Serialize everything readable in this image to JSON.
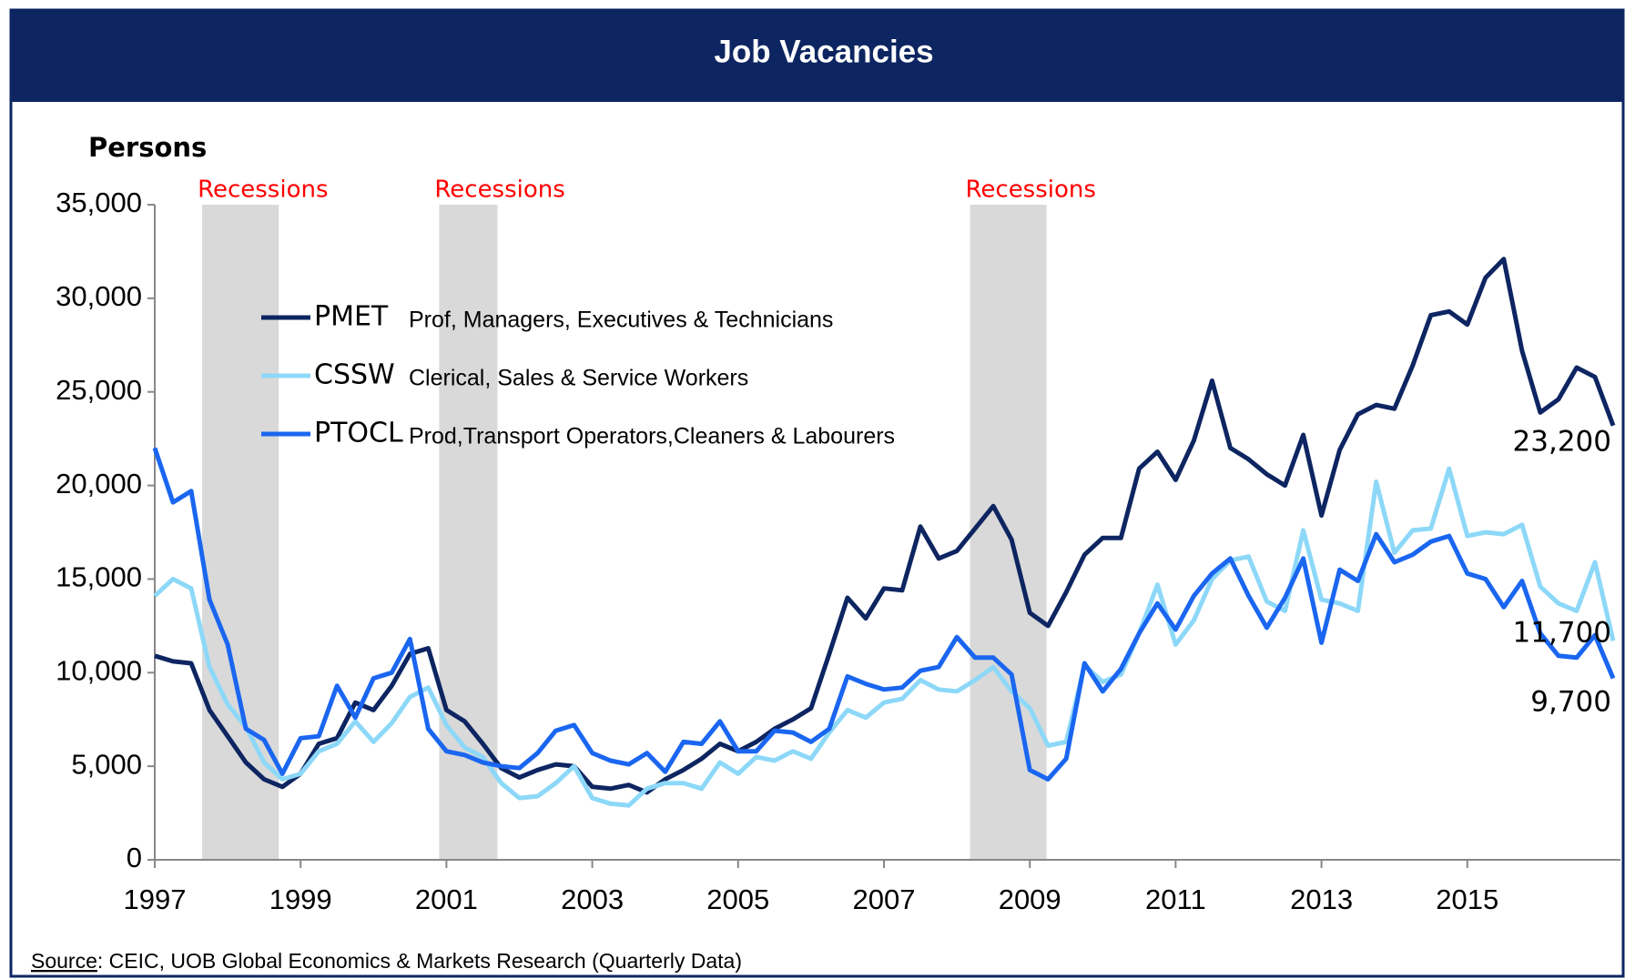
{
  "chart_data": {
    "type": "line",
    "title": "Job Vacancies",
    "ylabel": "Persons",
    "source": {
      "label": "Source",
      "text": ": CEIC, UOB Global Economics & Markets Research (Quarterly Data)"
    },
    "x": [
      1997,
      1997.25,
      1997.5,
      1997.75,
      1998,
      1998.25,
      1998.5,
      1998.75,
      1999,
      1999.25,
      1999.5,
      1999.75,
      2000,
      2000.25,
      2000.5,
      2000.75,
      2001,
      2001.25,
      2001.5,
      2001.75,
      2002,
      2002.25,
      2002.5,
      2002.75,
      2003,
      2003.25,
      2003.5,
      2003.75,
      2004,
      2004.25,
      2004.5,
      2004.75,
      2005,
      2005.25,
      2005.5,
      2005.75,
      2006,
      2006.25,
      2006.5,
      2006.75,
      2007,
      2007.25,
      2007.5,
      2007.75,
      2008,
      2008.25,
      2008.5,
      2008.75,
      2009,
      2009.25,
      2009.5,
      2009.75,
      2010,
      2010.25,
      2010.5,
      2010.75,
      2011,
      2011.25,
      2011.5,
      2011.75,
      2012,
      2012.25,
      2012.5,
      2012.75,
      2013,
      2013.25,
      2013.5,
      2013.75,
      2014,
      2014.25,
      2014.5,
      2014.75,
      2015,
      2015.25,
      2015.5,
      2015.75,
      2016,
      2016.25,
      2016.5,
      2016.75,
      2017
    ],
    "series": [
      {
        "name": "PMET",
        "description": "Prof, Managers, Executives & Technicians",
        "color": "#0d2561",
        "values": [
          10900,
          10600,
          10500,
          8000,
          6600,
          5200,
          4300,
          3900,
          4600,
          6200,
          6500,
          8400,
          8000,
          9300,
          11000,
          11300,
          8000,
          7400,
          6200,
          4900,
          4400,
          4800,
          5100,
          5000,
          3900,
          3800,
          4000,
          3600,
          4300,
          4800,
          5400,
          6200,
          5800,
          6300,
          7000,
          7500,
          8100,
          11000,
          14000,
          12900,
          14500,
          14400,
          17800,
          16100,
          16500,
          17700,
          18900,
          17100,
          13200,
          12500,
          14300,
          16300,
          17200,
          17200,
          20900,
          21800,
          20300,
          22400,
          25600,
          22000,
          21400,
          20600,
          20000,
          22700,
          18400,
          21900,
          23800,
          24300,
          24100,
          26400,
          29100,
          29300,
          28600,
          31100,
          32100,
          27200,
          23900,
          24600,
          26300,
          25800,
          23200
        ],
        "value_labels": {
          "80": "23,200"
        }
      },
      {
        "name": "CSSW",
        "description": "Clerical, Sales & Service Workers",
        "color": "#8dd8f8",
        "values": [
          14100,
          15000,
          14500,
          10300,
          8300,
          7100,
          5200,
          4300,
          4600,
          5800,
          6200,
          7400,
          6300,
          7300,
          8700,
          9200,
          7200,
          6000,
          5500,
          4100,
          3300,
          3400,
          4100,
          5000,
          3300,
          3000,
          2900,
          3800,
          4100,
          4100,
          3800,
          5200,
          4600,
          5500,
          5300,
          5800,
          5400,
          6800,
          8000,
          7600,
          8400,
          8600,
          9600,
          9100,
          9000,
          9600,
          10300,
          9000,
          8100,
          6100,
          6300,
          10400,
          9500,
          9900,
          12100,
          14700,
          11500,
          12800,
          15000,
          16000,
          16200,
          13800,
          13300,
          17600,
          13900,
          13700,
          13300,
          20200,
          16400,
          17600,
          17700,
          20900,
          17300,
          17500,
          17400,
          17900,
          14600,
          13700,
          13300,
          15900,
          11700
        ],
        "value_labels": {
          "80": "11,700"
        }
      },
      {
        "name": "PTOCL",
        "description": "Prod,Transport Operators,Cleaners & Labourers",
        "color": "#1a66f0",
        "values": [
          22000,
          19100,
          19700,
          13900,
          11500,
          7000,
          6400,
          4600,
          6500,
          6600,
          9300,
          7600,
          9700,
          10000,
          11800,
          7000,
          5800,
          5600,
          5200,
          5000,
          4900,
          5700,
          6900,
          7200,
          5700,
          5300,
          5100,
          5700,
          4700,
          6300,
          6200,
          7400,
          5800,
          5800,
          6900,
          6800,
          6300,
          7000,
          9800,
          9400,
          9100,
          9200,
          10100,
          10300,
          11900,
          10800,
          10800,
          9900,
          4800,
          4300,
          5400,
          10500,
          9000,
          10200,
          12100,
          13700,
          12300,
          14100,
          15300,
          16100,
          14100,
          12400,
          14000,
          16100,
          11600,
          15500,
          14900,
          17400,
          15900,
          16300,
          17000,
          17300,
          15300,
          15000,
          13500,
          14900,
          12100,
          10900,
          10800,
          12000,
          9700
        ],
        "value_labels": {
          "80": "9,700"
        }
      }
    ],
    "recessions": [
      {
        "label": "Recessions",
        "start": 1997.65,
        "end": 1998.7,
        "color": "#d9d9d9"
      },
      {
        "label": "Recessions",
        "start": 2000.9,
        "end": 2001.7,
        "color": "#d9d9d9"
      },
      {
        "label": "Recessions",
        "start": 2008.18,
        "end": 2009.23,
        "color": "#d9d9d9"
      }
    ],
    "xlim": [
      1997,
      2017.1
    ],
    "xticks": [
      1997,
      1999,
      2001,
      2003,
      2005,
      2007,
      2009,
      2011,
      2013,
      2015
    ],
    "ylim": [
      0,
      35000
    ],
    "yticks": [
      0,
      {
        "value": 5000,
        "label": "5,000"
      },
      {
        "value": 10000,
        "label": "10,000"
      },
      {
        "value": 15000,
        "label": "15,000"
      },
      {
        "value": 20000,
        "label": "20,000"
      },
      {
        "value": 25000,
        "label": "25,000"
      },
      {
        "value": 30000,
        "label": "30,000"
      },
      {
        "value": 35000,
        "label": "35,000"
      }
    ],
    "grid": false,
    "legend": "upper-left"
  }
}
